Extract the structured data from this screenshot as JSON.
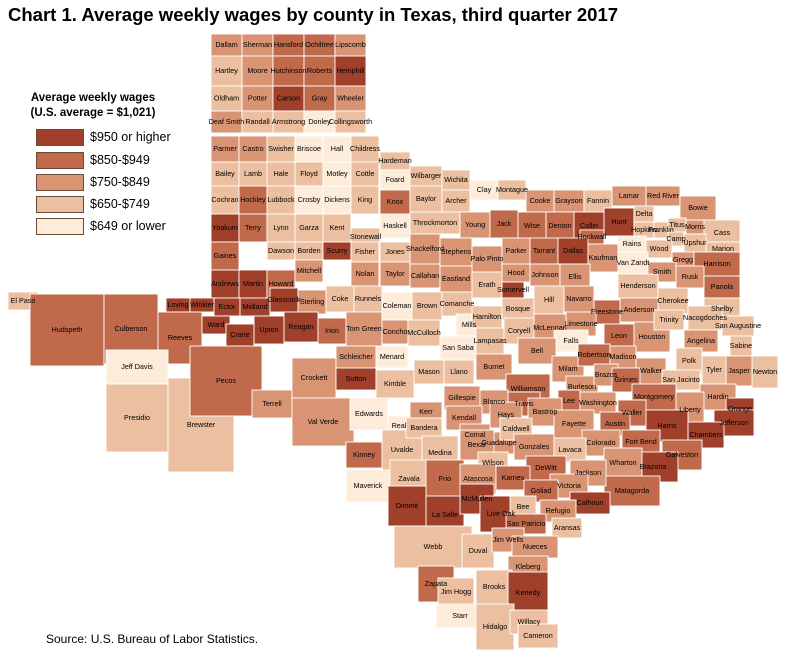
{
  "title": "Chart 1. Average weekly wages by county in Texas, third quarter 2017",
  "source": "Source: U.S. Bureau of Labor Statistics.",
  "legend": {
    "heading_line1": "Average weekly wages",
    "heading_line2": "(U.S. average = $1,021)",
    "items": [
      {
        "label": "$950 or higher",
        "color": "#a0402a"
      },
      {
        "label": "$850-$949",
        "color": "#c0694b"
      },
      {
        "label": "$750-$849",
        "color": "#d99474"
      },
      {
        "label": "$650-$749",
        "color": "#ebbf9f"
      },
      {
        "label": "$649 or lower",
        "color": "#fdecd9"
      }
    ]
  },
  "counties": [
    {
      "name": "Dallam",
      "c": 2
    },
    {
      "name": "Sherman",
      "c": 2
    },
    {
      "name": "Hansford",
      "c": 1
    },
    {
      "name": "Ochiltree",
      "c": 1
    },
    {
      "name": "Lipscomb",
      "c": 2
    },
    {
      "name": "Hartley",
      "c": 3
    },
    {
      "name": "Moore",
      "c": 2
    },
    {
      "name": "Hutchinson",
      "c": 1
    },
    {
      "name": "Roberts",
      "c": 1
    },
    {
      "name": "Hemphill",
      "c": 0
    },
    {
      "name": "Oldham",
      "c": 3
    },
    {
      "name": "Potter",
      "c": 2
    },
    {
      "name": "Carson",
      "c": 0
    },
    {
      "name": "Gray",
      "c": 1
    },
    {
      "name": "Wheeler",
      "c": 2
    },
    {
      "name": "Deaf Smith",
      "c": 2
    },
    {
      "name": "Randall",
      "c": 3
    },
    {
      "name": "Armstrong",
      "c": 3
    },
    {
      "name": "Donley",
      "c": 4
    },
    {
      "name": "Collingsworth",
      "c": 3
    },
    {
      "name": "Parmer",
      "c": 2
    },
    {
      "name": "Castro",
      "c": 2
    },
    {
      "name": "Swisher",
      "c": 3
    },
    {
      "name": "Briscoe",
      "c": 4
    },
    {
      "name": "Hall",
      "c": 4
    },
    {
      "name": "Childress",
      "c": 3
    },
    {
      "name": "Hardeman",
      "c": 3
    },
    {
      "name": "Bailey",
      "c": 3
    },
    {
      "name": "Lamb",
      "c": 3
    },
    {
      "name": "Hale",
      "c": 3
    },
    {
      "name": "Floyd",
      "c": 3
    },
    {
      "name": "Motley",
      "c": 4
    },
    {
      "name": "Cottle",
      "c": 3
    },
    {
      "name": "Foard",
      "c": 4
    },
    {
      "name": "Wilbarger",
      "c": 3
    },
    {
      "name": "Wichita",
      "c": 3
    },
    {
      "name": "Clay",
      "c": 4
    },
    {
      "name": "Montague",
      "c": 3
    },
    {
      "name": "Cooke",
      "c": 2
    },
    {
      "name": "Grayson",
      "c": 2
    },
    {
      "name": "Fannin",
      "c": 3
    },
    {
      "name": "Lamar",
      "c": 2
    },
    {
      "name": "Red River",
      "c": 2
    },
    {
      "name": "Bowie",
      "c": 2
    },
    {
      "name": "Cochran",
      "c": 3
    },
    {
      "name": "Hockley",
      "c": 1
    },
    {
      "name": "Lubbock",
      "c": 3
    },
    {
      "name": "Crosby",
      "c": 4
    },
    {
      "name": "Dickens",
      "c": 4
    },
    {
      "name": "King",
      "c": 3
    },
    {
      "name": "Knox",
      "c": 1
    },
    {
      "name": "Baylor",
      "c": 3
    },
    {
      "name": "Archer",
      "c": 3
    },
    {
      "name": "Throckmorton",
      "c": 3
    },
    {
      "name": "Young",
      "c": 2
    },
    {
      "name": "Jack",
      "c": 1
    },
    {
      "name": "Wise",
      "c": 1
    },
    {
      "name": "Denton",
      "c": 1
    },
    {
      "name": "Collin",
      "c": 0
    },
    {
      "name": "Hunt",
      "c": 0
    },
    {
      "name": "Delta",
      "c": 3
    },
    {
      "name": "Hopkins",
      "c": 3
    },
    {
      "name": "Franklin",
      "c": 3
    },
    {
      "name": "Titus",
      "c": 3
    },
    {
      "name": "Morris",
      "c": 2
    },
    {
      "name": "Cass",
      "c": 3
    },
    {
      "name": "Yoakum",
      "c": 0
    },
    {
      "name": "Terry",
      "c": 1
    },
    {
      "name": "Lynn",
      "c": 3
    },
    {
      "name": "Garza",
      "c": 3
    },
    {
      "name": "Kent",
      "c": 3
    },
    {
      "name": "Haskell",
      "c": 4
    },
    {
      "name": "Stonewall",
      "c": 3
    },
    {
      "name": "Rockwall",
      "c": 1
    },
    {
      "name": "Camp",
      "c": 3
    },
    {
      "name": "Upshur",
      "c": 3
    },
    {
      "name": "Marion",
      "c": 3
    },
    {
      "name": "Gaines",
      "c": 1
    },
    {
      "name": "Dawson",
      "c": 3
    },
    {
      "name": "Borden",
      "c": 3
    },
    {
      "name": "Scurry",
      "c": 0
    },
    {
      "name": "Fisher",
      "c": 3
    },
    {
      "name": "Jones",
      "c": 3
    },
    {
      "name": "Shackelford",
      "c": 2
    },
    {
      "name": "Stephens",
      "c": 2
    },
    {
      "name": "Palo Pinto",
      "c": 2
    },
    {
      "name": "Parker",
      "c": 2
    },
    {
      "name": "Tarrant",
      "c": 1
    },
    {
      "name": "Dallas",
      "c": 0
    },
    {
      "name": "Kaufman",
      "c": 2
    },
    {
      "name": "Rains",
      "c": 4
    },
    {
      "name": "Wood",
      "c": 3
    },
    {
      "name": "Gregg",
      "c": 2
    },
    {
      "name": "Harrison",
      "c": 1
    },
    {
      "name": "Van Zandt",
      "c": 4
    },
    {
      "name": "Smith",
      "c": 2
    },
    {
      "name": "Rusk",
      "c": 2
    },
    {
      "name": "Panola",
      "c": 1
    },
    {
      "name": "Andrews",
      "c": 0
    },
    {
      "name": "Martin",
      "c": 0
    },
    {
      "name": "Howard",
      "c": 1
    },
    {
      "name": "Mitchell",
      "c": 2
    },
    {
      "name": "Nolan",
      "c": 2
    },
    {
      "name": "Taylor",
      "c": 2
    },
    {
      "name": "Callahan",
      "c": 2
    },
    {
      "name": "Eastland",
      "c": 2
    },
    {
      "name": "Erath",
      "c": 3
    },
    {
      "name": "Hood",
      "c": 2
    },
    {
      "name": "Johnson",
      "c": 2
    },
    {
      "name": "Ellis",
      "c": 2
    },
    {
      "name": "Henderson",
      "c": 3
    },
    {
      "name": "Cherokee",
      "c": 3
    },
    {
      "name": "Shelby",
      "c": 3
    },
    {
      "name": "Loving",
      "c": 0
    },
    {
      "name": "Winkler",
      "c": 0
    },
    {
      "name": "Ector",
      "c": 0
    },
    {
      "name": "Midland",
      "c": 0
    },
    {
      "name": "Glasscock",
      "c": 0
    },
    {
      "name": "Sterling",
      "c": 2
    },
    {
      "name": "Coke",
      "c": 3
    },
    {
      "name": "Runnels",
      "c": 3
    },
    {
      "name": "Coleman",
      "c": 4
    },
    {
      "name": "Brown",
      "c": 3
    },
    {
      "name": "Comanche",
      "c": 3
    },
    {
      "name": "Somervell",
      "c": 0
    },
    {
      "name": "Bosque",
      "c": 3
    },
    {
      "name": "Hill",
      "c": 3
    },
    {
      "name": "Navarro",
      "c": 2
    },
    {
      "name": "Freestone",
      "c": 1
    },
    {
      "name": "Anderson",
      "c": 2
    },
    {
      "name": "Nacogdoches",
      "c": 3
    },
    {
      "name": "San Augustine",
      "c": 3
    },
    {
      "name": "Sabine",
      "c": 3
    },
    {
      "name": "El Paso",
      "c": 3
    },
    {
      "name": "Hudspeth",
      "c": 1
    },
    {
      "name": "Culberson",
      "c": 1
    },
    {
      "name": "Reeves",
      "c": 1
    },
    {
      "name": "Ward",
      "c": 0
    },
    {
      "name": "Crane",
      "c": 0
    },
    {
      "name": "Upton",
      "c": 0
    },
    {
      "name": "Reagan",
      "c": 0
    },
    {
      "name": "Irion",
      "c": 1
    },
    {
      "name": "Tom Green",
      "c": 2
    },
    {
      "name": "Concho",
      "c": 2
    },
    {
      "name": "McCulloch",
      "c": 3
    },
    {
      "name": "Mills",
      "c": 4
    },
    {
      "name": "Hamilton",
      "c": 3
    },
    {
      "name": "Lampasas",
      "c": 3
    },
    {
      "name": "Coryell",
      "c": 3
    },
    {
      "name": "McLennan",
      "c": 2
    },
    {
      "name": "Limestone",
      "c": 2
    },
    {
      "name": "Falls",
      "c": 4
    },
    {
      "name": "Leon",
      "c": 1
    },
    {
      "name": "Houston",
      "c": 2
    },
    {
      "name": "Trinity",
      "c": 3
    },
    {
      "name": "Angelina",
      "c": 2
    },
    {
      "name": "Newton",
      "c": 3
    },
    {
      "name": "Jasper",
      "c": 2
    },
    {
      "name": "Tyler",
      "c": 3
    },
    {
      "name": "Polk",
      "c": 3
    },
    {
      "name": "Jeff Davis",
      "c": 4
    },
    {
      "name": "Presidio",
      "c": 3
    },
    {
      "name": "Brewster",
      "c": 3
    },
    {
      "name": "Pecos",
      "c": 1
    },
    {
      "name": "Terrell",
      "c": 2
    },
    {
      "name": "Crockett",
      "c": 2
    },
    {
      "name": "Schleicher",
      "c": 2
    },
    {
      "name": "Sutton",
      "c": 0
    },
    {
      "name": "Menard",
      "c": 4
    },
    {
      "name": "Kimble",
      "c": 3
    },
    {
      "name": "Mason",
      "c": 3
    },
    {
      "name": "Llano",
      "c": 3
    },
    {
      "name": "San Saba",
      "c": 4
    },
    {
      "name": "Burnet",
      "c": 2
    },
    {
      "name": "Bell",
      "c": 2
    },
    {
      "name": "Milam",
      "c": 2
    },
    {
      "name": "Robertson",
      "c": 1
    },
    {
      "name": "Madison",
      "c": 2
    },
    {
      "name": "Walker",
      "c": 2
    },
    {
      "name": "San Jacinto",
      "c": 3
    },
    {
      "name": "Hardin",
      "c": 2
    },
    {
      "name": "Orange",
      "c": 0
    },
    {
      "name": "Williamson",
      "c": 1
    },
    {
      "name": "Travis",
      "c": 1
    },
    {
      "name": "Burleson",
      "c": 2
    },
    {
      "name": "Brazos",
      "c": 2
    },
    {
      "name": "Grimes",
      "c": 1
    },
    {
      "name": "Montgomery",
      "c": 1
    },
    {
      "name": "Liberty",
      "c": 2
    },
    {
      "name": "Jefferson",
      "c": 0
    },
    {
      "name": "Lee",
      "c": 1
    },
    {
      "name": "Washington",
      "c": 2
    },
    {
      "name": "Waller",
      "c": 1
    },
    {
      "name": "Harris",
      "c": 0
    },
    {
      "name": "Chambers",
      "c": 0
    },
    {
      "name": "Austin",
      "c": 1
    },
    {
      "name": "Fort Bend",
      "c": 1
    },
    {
      "name": "Galveston",
      "c": 1
    },
    {
      "name": "Brazoria",
      "c": 0
    },
    {
      "name": "Val Verde",
      "c": 2
    },
    {
      "name": "Edwards",
      "c": 4
    },
    {
      "name": "Real",
      "c": 4
    },
    {
      "name": "Kerr",
      "c": 2
    },
    {
      "name": "Gillespie",
      "c": 2
    },
    {
      "name": "Blanco",
      "c": 2
    },
    {
      "name": "Hays",
      "c": 2
    },
    {
      "name": "Bastrop",
      "c": 2
    },
    {
      "name": "Fayette",
      "c": 2
    },
    {
      "name": "Colorado",
      "c": 2
    },
    {
      "name": "Wharton",
      "c": 2
    },
    {
      "name": "Matagorda",
      "c": 1
    },
    {
      "name": "Kinney",
      "c": 1
    },
    {
      "name": "Uvalde",
      "c": 3
    },
    {
      "name": "Bandera",
      "c": 3
    },
    {
      "name": "Kendall",
      "c": 2
    },
    {
      "name": "Comal",
      "c": 2
    },
    {
      "name": "Guadalupe",
      "c": 2
    },
    {
      "name": "Caldwell",
      "c": 3
    },
    {
      "name": "Gonzales",
      "c": 2
    },
    {
      "name": "Lavaca",
      "c": 3
    },
    {
      "name": "Jackson",
      "c": 2
    },
    {
      "name": "Medina",
      "c": 3
    },
    {
      "name": "Bexar",
      "c": 2
    },
    {
      "name": "Wilson",
      "c": 3
    },
    {
      "name": "DeWitt",
      "c": 1
    },
    {
      "name": "Victoria",
      "c": 2
    },
    {
      "name": "Calhoun",
      "c": 0
    },
    {
      "name": "Maverick",
      "c": 4
    },
    {
      "name": "Zavala",
      "c": 3
    },
    {
      "name": "Frio",
      "c": 1
    },
    {
      "name": "Atascosa",
      "c": 2
    },
    {
      "name": "Karnes",
      "c": 1
    },
    {
      "name": "Goliad",
      "c": 1
    },
    {
      "name": "Refugio",
      "c": 2
    },
    {
      "name": "Dimmit",
      "c": 0
    },
    {
      "name": "La Salle",
      "c": 0
    },
    {
      "name": "McMullen",
      "c": 0
    },
    {
      "name": "Live Oak",
      "c": 0
    },
    {
      "name": "Bee",
      "c": 3
    },
    {
      "name": "San Patricio",
      "c": 1
    },
    {
      "name": "Aransas",
      "c": 3
    },
    {
      "name": "Webb",
      "c": 3
    },
    {
      "name": "Duval",
      "c": 3
    },
    {
      "name": "Jim Wells",
      "c": 2
    },
    {
      "name": "Nueces",
      "c": 2
    },
    {
      "name": "Kleberg",
      "c": 2
    },
    {
      "name": "Zapata",
      "c": 1
    },
    {
      "name": "Jim Hogg",
      "c": 3
    },
    {
      "name": "Brooks",
      "c": 3
    },
    {
      "name": "Kenedy",
      "c": 0
    },
    {
      "name": "Starr",
      "c": 4
    },
    {
      "name": "Hidalgo",
      "c": 3
    },
    {
      "name": "Willacy",
      "c": 3
    },
    {
      "name": "Cameron",
      "c": 3
    }
  ]
}
